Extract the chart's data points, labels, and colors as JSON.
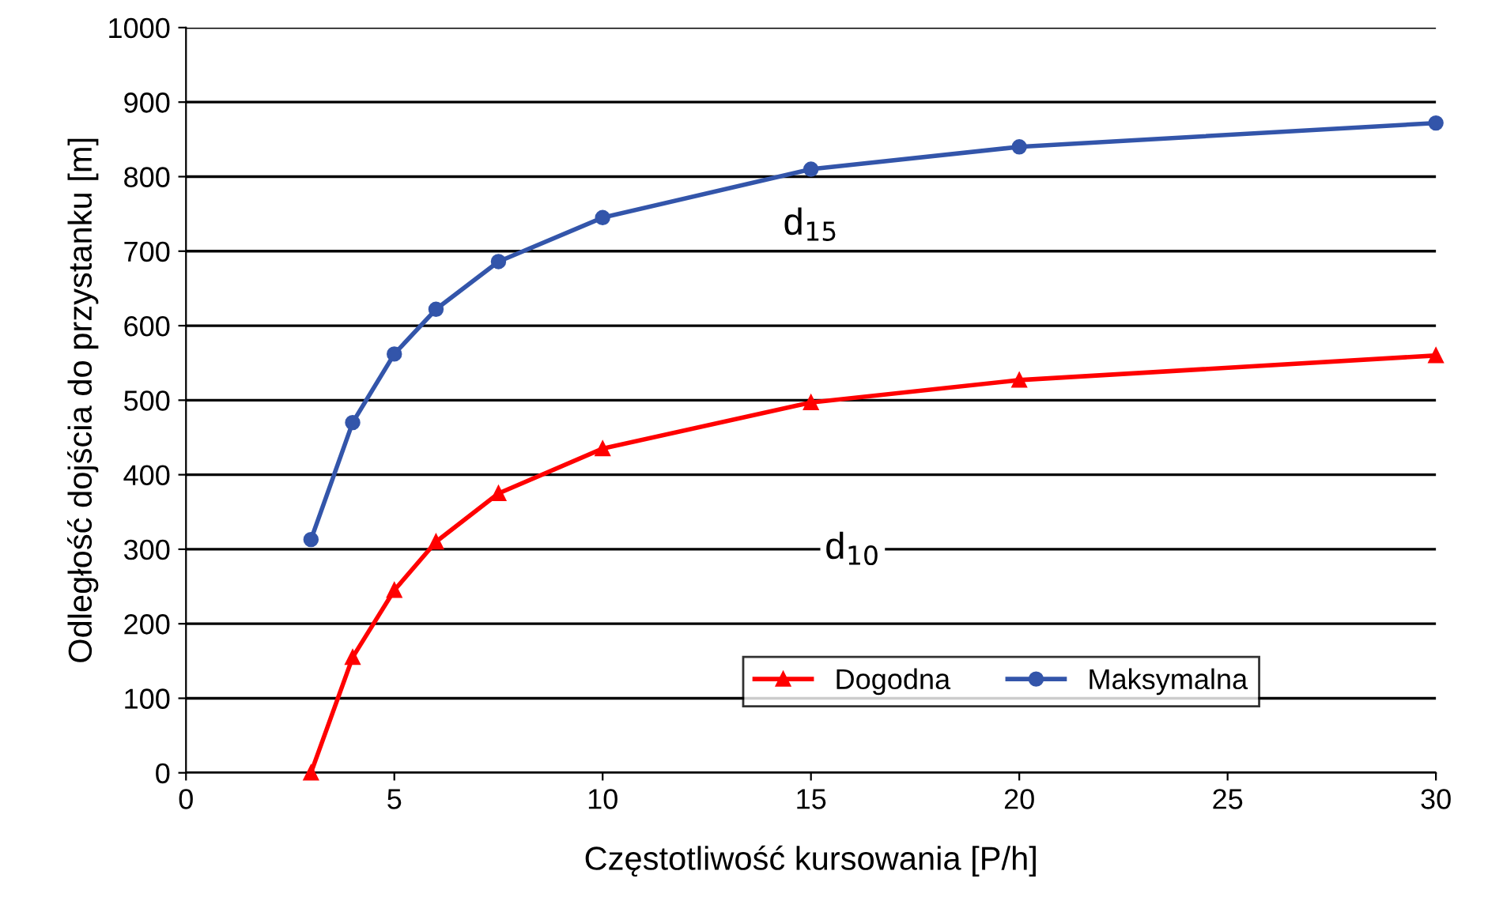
{
  "chart_data": {
    "type": "line",
    "xlabel": "Częstotliwość kursowania [P/h]",
    "ylabel": "Odległość dojścia do przystanku [m]",
    "xlim": [
      0,
      30
    ],
    "xticks": [
      0,
      5,
      10,
      15,
      20,
      25,
      30
    ],
    "ylim": [
      0,
      1000
    ],
    "yticks": [
      0,
      100,
      200,
      300,
      400,
      500,
      600,
      700,
      800,
      900,
      1000
    ],
    "grid": "y",
    "legend": "bottom right",
    "line_style": "solid",
    "series": [
      {
        "name": "Dogodna",
        "color": "#ff0000",
        "marker": "triangle",
        "x": [
          3,
          4,
          5,
          6,
          7.5,
          10,
          15,
          20,
          30
        ],
        "values": [
          0,
          155,
          245,
          310,
          375,
          435,
          497,
          527,
          560
        ]
      },
      {
        "name": "Maksymalna",
        "color": "#3355aa",
        "marker": "circle",
        "x": [
          3,
          4,
          5,
          6,
          7.5,
          10,
          15,
          20,
          30
        ],
        "values": [
          313,
          470,
          562,
          622,
          686,
          745,
          810,
          840,
          872
        ]
      }
    ],
    "annotations": [
      {
        "text": "d$_{15}$",
        "x": 15,
        "y": 735
      },
      {
        "text": "d$_{10}$",
        "x": 16,
        "y": 300
      }
    ]
  }
}
